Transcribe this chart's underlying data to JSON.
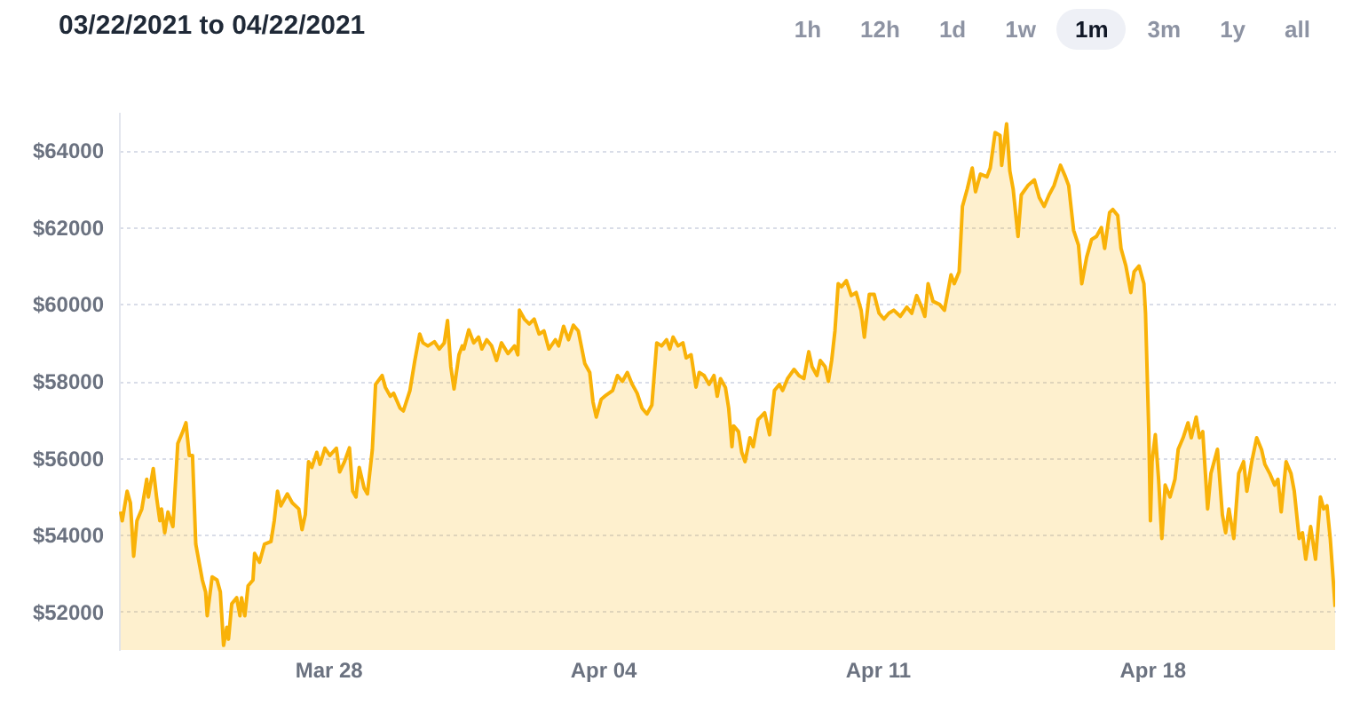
{
  "chart_data": {
    "type": "area",
    "title": "03/22/2021 to 04/22/2021",
    "annotations": [
      "1h",
      "12h",
      "1d",
      "1w",
      "1m",
      "3m",
      "1y",
      "all"
    ],
    "xlim": [
      "2021-03-22T16:00",
      "2021-04-22T16:00"
    ],
    "xticks": [
      {
        "value": "2021-03-28",
        "label": "Mar 28"
      },
      {
        "value": "2021-04-04",
        "label": "Apr 04"
      },
      {
        "value": "2021-04-11",
        "label": "Apr 11"
      },
      {
        "value": "2021-04-18",
        "label": "Apr 18"
      }
    ],
    "ylim": [
      51000,
      65000
    ],
    "yticks": [
      {
        "value": 52000,
        "label": "$52000"
      },
      {
        "value": 54000,
        "label": "$54000"
      },
      {
        "value": 56000,
        "label": "$56000"
      },
      {
        "value": 58000,
        "label": "$58000"
      },
      {
        "value": 60000,
        "label": "$60000"
      },
      {
        "value": 62000,
        "label": "$62000"
      },
      {
        "value": 64000,
        "label": "$64000"
      }
    ],
    "grid": "y",
    "line_style": "solid",
    "series": [
      {
        "color": "#f9b208",
        "x": [
          "2021-03-22T17:00",
          "2021-03-22T18:00",
          "2021-03-22T21:00",
          "2021-03-22T23:00",
          "2021-03-23T01:00",
          "2021-03-23T03:00",
          "2021-03-23T06:00",
          "2021-03-23T09:00",
          "2021-03-23T10:00",
          "2021-03-23T13:00",
          "2021-03-23T15:00",
          "2021-03-23T17:00",
          "2021-03-23T18:00",
          "2021-03-23T20:00",
          "2021-03-23T22:00",
          "2021-03-24T01:00",
          "2021-03-24T04:00",
          "2021-03-24T07:00",
          "2021-03-24T09:00",
          "2021-03-24T11:00",
          "2021-03-24T13:00",
          "2021-03-24T15:00",
          "2021-03-24T19:00",
          "2021-03-24T21:00",
          "2021-03-24T22:00",
          "2021-03-25T01:00",
          "2021-03-25T04:00",
          "2021-03-25T06:00",
          "2021-03-25T08:00",
          "2021-03-25T10:00",
          "2021-03-25T11:00",
          "2021-03-25T13:00",
          "2021-03-25T16:00",
          "2021-03-25T18:00",
          "2021-03-25T19:00",
          "2021-03-25T21:00",
          "2021-03-25T23:00",
          "2021-03-26T02:00",
          "2021-03-26T03:00",
          "2021-03-26T06:00",
          "2021-03-26T09:00",
          "2021-03-26T13:00",
          "2021-03-26T15:00",
          "2021-03-26T17:00",
          "2021-03-26T19:00",
          "2021-03-26T23:00",
          "2021-03-27T02:00",
          "2021-03-27T06:00",
          "2021-03-27T08:00",
          "2021-03-27T10:00",
          "2021-03-27T12:00",
          "2021-03-27T14:00",
          "2021-03-27T17:00",
          "2021-03-27T19:00",
          "2021-03-27T22:00",
          "2021-03-28T01:00",
          "2021-03-28T05:00",
          "2021-03-28T07:00",
          "2021-03-28T10:00",
          "2021-03-28T13:00",
          "2021-03-28T15:00",
          "2021-03-28T17:00",
          "2021-03-28T19:00",
          "2021-03-28T22:00",
          "2021-03-29T00:00",
          "2021-03-29T03:00",
          "2021-03-29T05:00",
          "2021-03-29T09:00",
          "2021-03-29T11:00",
          "2021-03-29T14:00",
          "2021-03-29T16:00",
          "2021-03-29T20:00",
          "2021-03-29T22:00",
          "2021-03-30T02:00",
          "2021-03-30T05:00",
          "2021-03-30T08:00",
          "2021-03-30T10:00",
          "2021-03-30T13:00",
          "2021-03-30T17:00",
          "2021-03-30T20:00",
          "2021-03-30T23:00",
          "2021-03-31T01:00",
          "2021-03-31T03:00",
          "2021-03-31T05:00",
          "2021-03-31T08:00",
          "2021-03-31T10:00",
          "2021-03-31T11:00",
          "2021-03-31T14:00",
          "2021-03-31T17:00",
          "2021-03-31T20:00",
          "2021-03-31T22:00",
          "2021-04-01T01:00",
          "2021-04-01T04:00",
          "2021-04-01T07:00",
          "2021-04-01T10:00",
          "2021-04-01T14:00",
          "2021-04-01T18:00",
          "2021-04-01T20:00",
          "2021-04-01T21:00",
          "2021-04-02T00:00",
          "2021-04-02T03:00",
          "2021-04-02T06:00",
          "2021-04-02T09:00",
          "2021-04-02T12:00",
          "2021-04-02T15:00",
          "2021-04-02T19:00",
          "2021-04-02T21:00",
          "2021-04-03T00:00",
          "2021-04-03T03:00",
          "2021-04-03T06:00",
          "2021-04-03T09:00",
          "2021-04-03T13:00",
          "2021-04-03T16:00",
          "2021-04-03T18:00",
          "2021-04-03T20:00",
          "2021-04-03T23:00",
          "2021-04-04T02:00",
          "2021-04-04T06:00",
          "2021-04-04T09:00",
          "2021-04-04T12:00",
          "2021-04-04T15:00",
          "2021-04-04T18:00",
          "2021-04-04T21:00",
          "2021-04-05T00:00",
          "2021-04-05T03:00",
          "2021-04-05T06:00",
          "2021-04-05T09:00",
          "2021-04-05T12:00",
          "2021-04-05T15:00",
          "2021-04-05T17:00",
          "2021-04-05T19:00",
          "2021-04-05T22:00",
          "2021-04-06T01:00",
          "2021-04-06T03:00",
          "2021-04-06T06:00",
          "2021-04-06T09:00",
          "2021-04-06T11:00",
          "2021-04-06T14:00",
          "2021-04-06T17:00",
          "2021-04-06T20:00",
          "2021-04-06T22:00",
          "2021-04-07T00:00",
          "2021-04-07T03:00",
          "2021-04-07T05:00",
          "2021-04-07T07:00",
          "2021-04-07T08:00",
          "2021-04-07T11:00",
          "2021-04-07T13:00",
          "2021-04-07T15:00",
          "2021-04-07T18:00",
          "2021-04-07T20:00",
          "2021-04-07T23:00",
          "2021-04-08T03:00",
          "2021-04-08T06:00",
          "2021-04-08T09:00",
          "2021-04-08T12:00",
          "2021-04-08T14:00",
          "2021-04-08T17:00",
          "2021-04-08T21:00",
          "2021-04-09T00:00",
          "2021-04-09T03:00",
          "2021-04-09T06:00",
          "2021-04-09T08:00",
          "2021-04-09T11:00",
          "2021-04-09T13:00",
          "2021-04-09T16:00",
          "2021-04-09T18:00",
          "2021-04-09T20:00",
          "2021-04-09T22:00",
          "2021-04-10T00:00",
          "2021-04-10T02:00",
          "2021-04-10T05:00",
          "2021-04-10T08:00",
          "2021-04-10T11:00",
          "2021-04-10T14:00",
          "2021-04-10T16:00",
          "2021-04-10T19:00",
          "2021-04-10T22:00",
          "2021-04-11T01:00",
          "2021-04-11T04:00",
          "2021-04-11T07:00",
          "2021-04-11T10:00",
          "2021-04-11T14:00",
          "2021-04-11T18:00",
          "2021-04-11T21:00",
          "2021-04-12T00:00",
          "2021-04-12T03:00",
          "2021-04-12T05:00",
          "2021-04-12T07:00",
          "2021-04-12T10:00",
          "2021-04-12T14:00",
          "2021-04-12T17:00",
          "2021-04-12T21:00",
          "2021-04-12T23:00",
          "2021-04-13T02:00",
          "2021-04-13T04:00",
          "2021-04-13T07:00",
          "2021-04-13T10:00",
          "2021-04-13T12:00",
          "2021-04-13T15:00",
          "2021-04-13T19:00",
          "2021-04-13T21:00",
          "2021-04-14T00:00",
          "2021-04-14T03:00",
          "2021-04-14T04:00",
          "2021-04-14T07:00",
          "2021-04-14T09:00",
          "2021-04-14T11:00",
          "2021-04-14T14:00",
          "2021-04-14T16:00",
          "2021-04-14T20:00",
          "2021-04-15T00:00",
          "2021-04-15T03:00",
          "2021-04-15T06:00",
          "2021-04-15T09:00",
          "2021-04-15T12:00",
          "2021-04-15T16:00",
          "2021-04-15T19:00",
          "2021-04-15T21:00",
          "2021-04-16T00:00",
          "2021-04-16T03:00",
          "2021-04-16T05:00",
          "2021-04-16T08:00",
          "2021-04-16T11:00",
          "2021-04-16T14:00",
          "2021-04-16T17:00",
          "2021-04-16T19:00",
          "2021-04-16T22:00",
          "2021-04-17T00:00",
          "2021-04-17T03:00",
          "2021-04-17T05:00",
          "2021-04-17T08:00",
          "2021-04-17T11:00",
          "2021-04-17T13:00",
          "2021-04-17T16:00",
          "2021-04-17T19:00",
          "2021-04-17T20:00",
          "2021-04-17T22:00",
          "2021-04-17T23:00",
          "2021-04-18T00:00",
          "2021-04-18T02:00",
          "2021-04-18T04:00",
          "2021-04-18T06:00",
          "2021-04-18T08:00",
          "2021-04-18T11:00",
          "2021-04-18T14:00",
          "2021-04-18T16:00",
          "2021-04-18T19:00",
          "2021-04-18T22:00",
          "2021-04-19T00:00",
          "2021-04-19T03:00",
          "2021-04-19T05:00",
          "2021-04-19T07:00",
          "2021-04-19T10:00",
          "2021-04-19T12:00",
          "2021-04-19T16:00",
          "2021-04-19T19:00",
          "2021-04-19T21:00",
          "2021-04-19T23:00",
          "2021-04-20T02:00",
          "2021-04-20T05:00",
          "2021-04-20T08:00",
          "2021-04-20T10:00",
          "2021-04-20T13:00",
          "2021-04-20T16:00",
          "2021-04-20T19:00",
          "2021-04-20T21:00",
          "2021-04-21T00:00",
          "2021-04-21T03:00",
          "2021-04-21T05:00",
          "2021-04-21T07:00",
          "2021-04-21T10:00",
          "2021-04-21T13:00",
          "2021-04-21T15:00",
          "2021-04-21T18:00",
          "2021-04-21T20:00",
          "2021-04-21T22:00",
          "2021-04-22T01:00",
          "2021-04-22T04:00",
          "2021-04-22T07:00",
          "2021-04-22T09:00",
          "2021-04-22T11:00",
          "2021-04-22T13:00",
          "2021-04-22T16:00"
        ],
        "values": [
          54600,
          54360,
          55130,
          54830,
          53440,
          54360,
          54670,
          55440,
          54980,
          55720,
          54980,
          54360,
          54670,
          54050,
          54590,
          54210,
          56370,
          56680,
          56910,
          56060,
          56060,
          53750,
          52820,
          52510,
          51890,
          52900,
          52820,
          52510,
          51120,
          51590,
          51280,
          52200,
          52360,
          51890,
          52360,
          51890,
          52670,
          52820,
          53510,
          53280,
          53750,
          53820,
          54360,
          55130,
          54750,
          55060,
          54830,
          54670,
          54130,
          54520,
          55900,
          55750,
          56140,
          55830,
          56250,
          56060,
          56250,
          55630,
          55900,
          56260,
          55130,
          54980,
          55750,
          55210,
          55060,
          56210,
          57910,
          58140,
          57830,
          57600,
          57680,
          57290,
          57220,
          57750,
          58530,
          59220,
          58990,
          58910,
          59020,
          58830,
          58990,
          59570,
          58370,
          57790,
          58680,
          58910,
          58830,
          59330,
          58990,
          59140,
          58830,
          59070,
          58910,
          58530,
          58990,
          58710,
          58910,
          58680,
          59840,
          59610,
          59480,
          59610,
          59220,
          59300,
          58830,
          59070,
          58910,
          59420,
          59070,
          59450,
          59300,
          58450,
          58220,
          57450,
          57060,
          57520,
          57630,
          57750,
          58140,
          57990,
          58220,
          57910,
          57680,
          57290,
          57140,
          57370,
          58990,
          58910,
          59070,
          58830,
          59140,
          58910,
          58990,
          58600,
          58680,
          57840,
          58220,
          58140,
          57910,
          58140,
          57600,
          58060,
          57830,
          57290,
          56290,
          56830,
          56680,
          56140,
          55900,
          56520,
          56290,
          56990,
          57170,
          56600,
          57750,
          57910,
          57750,
          58060,
          58300,
          58140,
          58060,
          58760,
          58370,
          58140,
          58530,
          58370,
          57990,
          58530,
          59300,
          60530,
          60450,
          60610,
          60220,
          60300,
          59840,
          59140,
          60250,
          60250,
          59760,
          59610,
          59760,
          59840,
          59680,
          59920,
          59760,
          60220,
          59920,
          59680,
          60530,
          60070,
          59990,
          59840,
          60760,
          60530,
          60840,
          62540,
          63000,
          63540,
          62920,
          63380,
          63310,
          63540,
          64460,
          64390,
          63610,
          64690,
          63460,
          63000,
          61760,
          62840,
          63080,
          63230,
          62770,
          62540,
          62840,
          63080,
          63610,
          63310,
          63080,
          61920,
          61530,
          60530,
          61220,
          61680,
          61760,
          61990,
          61450,
          62380,
          62460,
          62300,
          61450,
          60990,
          60300,
          60840,
          60990,
          60530,
          59760,
          56680,
          54360,
          55900,
          56600,
          55440,
          53900,
          55290,
          54980,
          55440,
          56220,
          56520,
          56910,
          56520,
          57060,
          56520,
          56680,
          54670,
          55590,
          56220,
          54520,
          54050,
          54670,
          53900,
          55590,
          55900,
          55130,
          55900,
          56520,
          56210,
          55830,
          55590,
          55290,
          55440,
          54590,
          55900,
          55590,
          55130,
          53900,
          54050,
          53360,
          54210,
          53360,
          54980,
          54670,
          54750,
          53900,
          52120
        ]
      }
    ]
  }
}
